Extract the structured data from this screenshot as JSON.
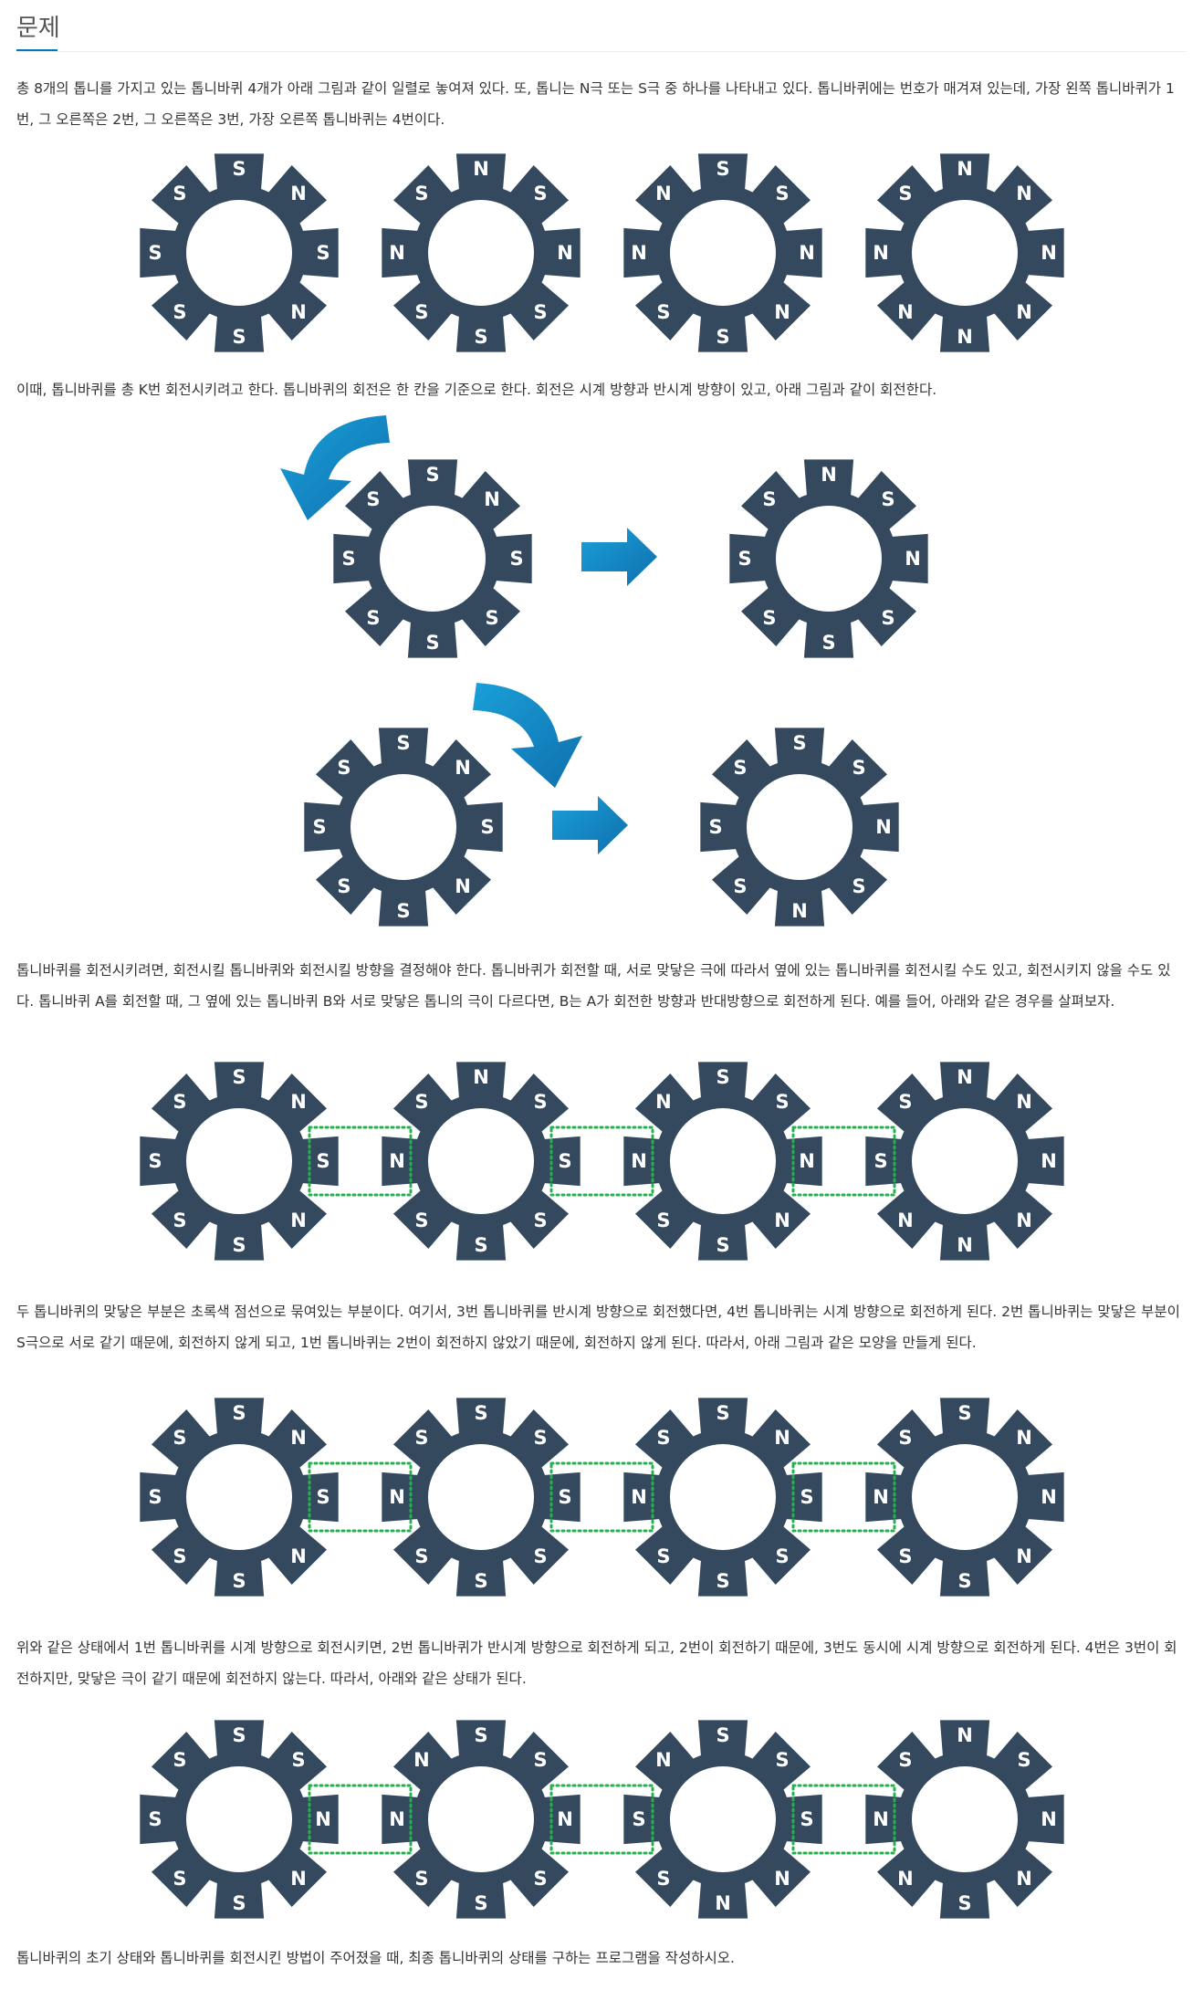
{
  "section": {
    "title": "문제"
  },
  "paragraphs": [
    "총 8개의 톱니를 가지고 있는 톱니바퀴 4개가 아래 그림과 같이 일렬로 놓여져 있다. 또, 톱니는 N극 또는 S극 중 하나를 나타내고 있다. 톱니바퀴에는 번호가 매겨져 있는데, 가장 왼쪽 톱니바퀴가 1번, 그 오른쪽은 2번, 그 오른쪽은 3번, 가장 오른쪽 톱니바퀴는 4번이다.",
    "이때, 톱니바퀴를 총 K번 회전시키려고 한다. 톱니바퀴의 회전은 한 칸을 기준으로 한다. 회전은 시계 방향과 반시계 방향이 있고, 아래 그림과 같이 회전한다.",
    "톱니바퀴를 회전시키려면, 회전시킬 톱니바퀴와 회전시킬 방향을 결정해야 한다. 톱니바퀴가 회전할 때, 서로 맞닿은 극에 따라서 옆에 있는 톱니바퀴를 회전시킬 수도 있고, 회전시키지 않을 수도 있다. 톱니바퀴 A를 회전할 때, 그 옆에 있는 톱니바퀴 B와 서로 맞닿은 톱니의 극이 다르다면, B는 A가 회전한 방향과 반대방향으로 회전하게 된다. 예를 들어, 아래와 같은 경우를 살펴보자.",
    "두 톱니바퀴의 맞닿은 부분은 초록색 점선으로 묶여있는 부분이다. 여기서, 3번 톱니바퀴를 반시계 방향으로 회전했다면, 4번 톱니바퀴는 시계 방향으로 회전하게 된다. 2번 톱니바퀴는 맞닿은 부분이 S극으로 서로 같기 때문에, 회전하지 않게 되고, 1번 톱니바퀴는 2번이 회전하지 않았기 때문에, 회전하지 않게 된다. 따라서, 아래 그림과 같은 모양을 만들게 된다.",
    "위와 같은 상태에서 1번 톱니바퀴를 시계 방향으로 회전시키면, 2번 톱니바퀴가 반시계 방향으로 회전하게 되고, 2번이 회전하기 때문에, 3번도 동시에 시계 방향으로 회전하게 된다. 4번은 3번이 회전하지만, 맞닿은 극이 같기 때문에 회전하지 않는다. 따라서, 아래와 같은 상태가 된다.",
    "톱니바퀴의 초기 상태와 톱니바퀴를 회전시킨 방법이 주어졌을 때, 최종 톱니바퀴의 상태를 구하는 프로그램을 작성하시오."
  ],
  "figures": {
    "initial": [
      [
        "S",
        "N",
        "S",
        "N",
        "S",
        "S",
        "S",
        "S"
      ],
      [
        "N",
        "S",
        "N",
        "S",
        "S",
        "S",
        "N",
        "S"
      ],
      [
        "S",
        "S",
        "N",
        "N",
        "S",
        "S",
        "N",
        "N"
      ],
      [
        "N",
        "N",
        "N",
        "N",
        "N",
        "N",
        "N",
        "S"
      ]
    ],
    "rotation_ccw": {
      "before": [
        "S",
        "N",
        "S",
        "S",
        "S",
        "S",
        "S",
        "S"
      ],
      "after": [
        "N",
        "S",
        "N",
        "S",
        "S",
        "S",
        "S",
        "S"
      ]
    },
    "rotation_cw": {
      "before": [
        "S",
        "N",
        "S",
        "N",
        "S",
        "S",
        "S",
        "S"
      ],
      "after": [
        "S",
        "S",
        "N",
        "S",
        "N",
        "S",
        "S",
        "S"
      ]
    },
    "example_before": [
      [
        "S",
        "N",
        "S",
        "N",
        "S",
        "S",
        "S",
        "S"
      ],
      [
        "N",
        "S",
        "S",
        "S",
        "S",
        "S",
        "N",
        "S"
      ],
      [
        "S",
        "S",
        "N",
        "N",
        "S",
        "S",
        "N",
        "N"
      ],
      [
        "N",
        "N",
        "N",
        "N",
        "N",
        "N",
        "S",
        "S"
      ]
    ],
    "example_after_step1": [
      [
        "S",
        "N",
        "S",
        "N",
        "S",
        "S",
        "S",
        "S"
      ],
      [
        "S",
        "S",
        "S",
        "S",
        "S",
        "S",
        "N",
        "S"
      ],
      [
        "S",
        "N",
        "S",
        "S",
        "S",
        "S",
        "N",
        "S"
      ],
      [
        "S",
        "N",
        "N",
        "N",
        "S",
        "S",
        "N",
        "S"
      ]
    ],
    "example_after_step2": [
      [
        "S",
        "S",
        "N",
        "N",
        "S",
        "S",
        "S",
        "S"
      ],
      [
        "S",
        "S",
        "N",
        "S",
        "S",
        "S",
        "N",
        "N"
      ],
      [
        "S",
        "S",
        "S",
        "N",
        "N",
        "S",
        "S",
        "N"
      ],
      [
        "N",
        "S",
        "N",
        "N",
        "S",
        "N",
        "N",
        "S"
      ]
    ]
  },
  "colors": {
    "gear": "#34495e",
    "pole_text": "#ffffff",
    "arrow_gradient_start": "#1aa0d8",
    "arrow_gradient_end": "#0f6fae",
    "contact_dots": "#22b14c"
  }
}
